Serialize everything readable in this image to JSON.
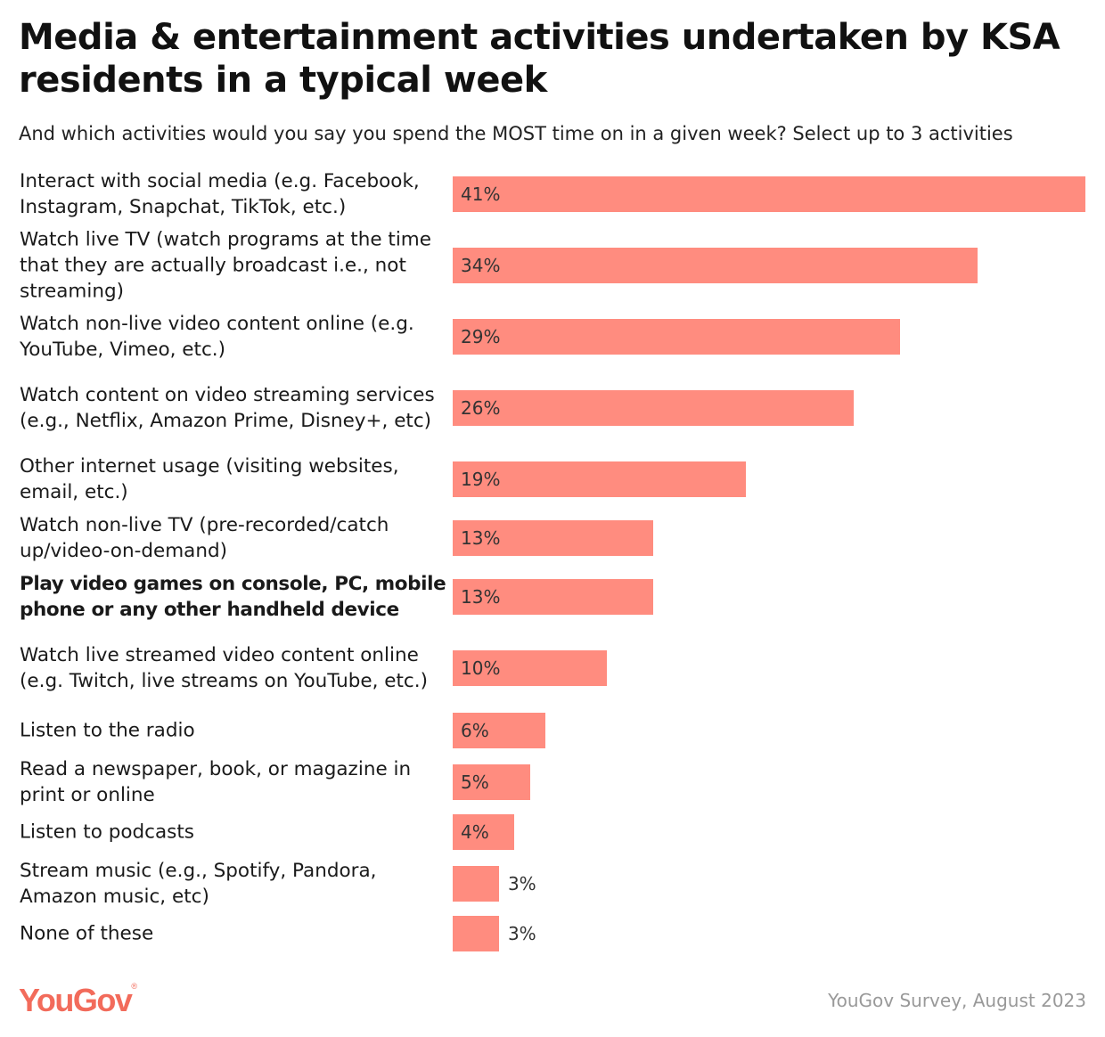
{
  "title": "Media & entertainment activities undertaken by KSA residents in a typical week",
  "subtitle": "And which activities would you say you spend the MOST time on in a given week? Select up to 3 activities",
  "brand": {
    "logo_text": "YouGov",
    "logo_mark": "®",
    "color": "#F26B5B"
  },
  "source": "YouGov Survey, August 2023",
  "chart_data": {
    "type": "bar",
    "orientation": "horizontal",
    "bar_color": "#FF8C7F",
    "unit": "%",
    "categories": [
      "Interact with social media (e.g. Facebook, Instagram, Snapchat, TikTok, etc.)",
      "Watch live TV (watch programs at the time that they are actually broadcast i.e., not streaming)",
      "Watch non-live video content online (e.g. YouTube, Vimeo, etc.)",
      "Watch content on video streaming services (e.g., Netflix, Amazon Prime, Disney+, etc)",
      "Other internet usage (visiting websites, email, etc.)",
      "Watch non-live TV (pre-recorded/catch up/video-on-demand)",
      "Play video games on console, PC, mobile phone or any other handheld device",
      "Watch live streamed video content online (e.g. Twitch, live streams on YouTube, etc.)",
      "Listen to the radio",
      "Read a newspaper, book, or magazine in print or online",
      "Listen to podcasts",
      "Stream music (e.g., Spotify, Pandora, Amazon music, etc)",
      "None of these"
    ],
    "values": [
      41,
      34,
      29,
      26,
      19,
      13,
      13,
      10,
      6,
      5,
      4,
      3,
      3
    ],
    "labels": [
      "41%",
      "34%",
      "29%",
      "26%",
      "19%",
      "13%",
      "13%",
      "10%",
      "6%",
      "5%",
      "4%",
      "3%",
      "3%"
    ],
    "highlighted_category": "Play video games on console, PC, mobile phone or any other handheld device",
    "xlim": [
      0,
      41
    ]
  }
}
